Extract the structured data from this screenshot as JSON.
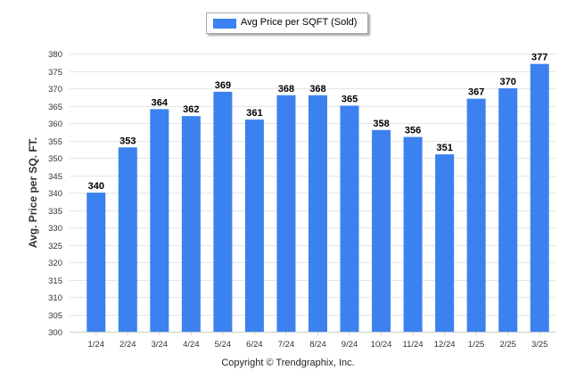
{
  "legend": {
    "label": "Avg Price per SQFT (Sold)"
  },
  "footer": {
    "text": "Copyright © Trendgraphix, Inc."
  },
  "colors": {
    "bar": "#3b82f0",
    "grid": "#e6e6e6",
    "axis": "#cccccc"
  },
  "chart_data": {
    "type": "bar",
    "categories": [
      "1/24",
      "2/24",
      "3/24",
      "4/24",
      "5/24",
      "6/24",
      "7/24",
      "8/24",
      "9/24",
      "10/24",
      "11/24",
      "12/24",
      "1/25",
      "2/25",
      "3/25"
    ],
    "series": [
      {
        "name": "Avg Price per SQFT (Sold)",
        "values": [
          340,
          353,
          364,
          362,
          369,
          361,
          368,
          368,
          365,
          358,
          356,
          351,
          367,
          370,
          377
        ]
      }
    ],
    "ylabel": "Avg. Price per SQ. FT.",
    "xlabel": "",
    "ylim": [
      300,
      380
    ],
    "ytick_step": 5,
    "grid": true,
    "legend_position": "top-center",
    "data_labels": true
  }
}
